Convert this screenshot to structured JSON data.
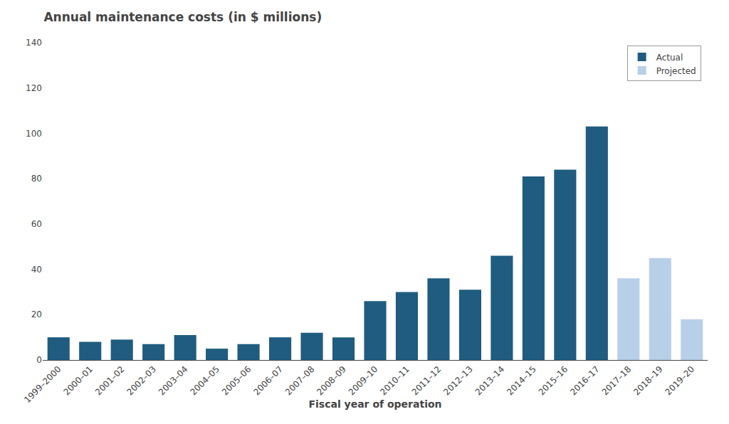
{
  "chart_data": {
    "type": "bar",
    "title": "Annual maintenance costs (in $ millions)",
    "x_label": "Fiscal year of operation",
    "categories": [
      "1999–2000",
      "2000–01",
      "2001–02",
      "2002–03",
      "2003–04",
      "2004–05",
      "2005–06",
      "2006–07",
      "2007–08",
      "2008–09",
      "2009–10",
      "2010–11",
      "2011–12",
      "2012–13",
      "2013–14",
      "2014–15",
      "2015–16",
      "2016–17",
      "2017–18",
      "2018–19",
      "2019–20"
    ],
    "series": [
      {
        "name": "Actual",
        "color": "#1f5c80",
        "values": [
          10,
          8,
          9,
          7,
          11,
          5,
          7,
          10,
          12,
          10,
          26,
          30,
          36,
          31,
          46,
          81,
          84,
          103,
          null,
          null,
          null
        ]
      },
      {
        "name": "Projected",
        "color": "#b8cfe8",
        "values": [
          null,
          null,
          null,
          null,
          null,
          null,
          null,
          null,
          null,
          null,
          null,
          null,
          null,
          null,
          null,
          null,
          null,
          null,
          36,
          45,
          18
        ]
      }
    ],
    "ylim": [
      0,
      140
    ],
    "yticks": [
      0,
      20,
      40,
      60,
      80,
      100,
      120,
      140
    ],
    "grid": false,
    "legend": "upper right"
  }
}
